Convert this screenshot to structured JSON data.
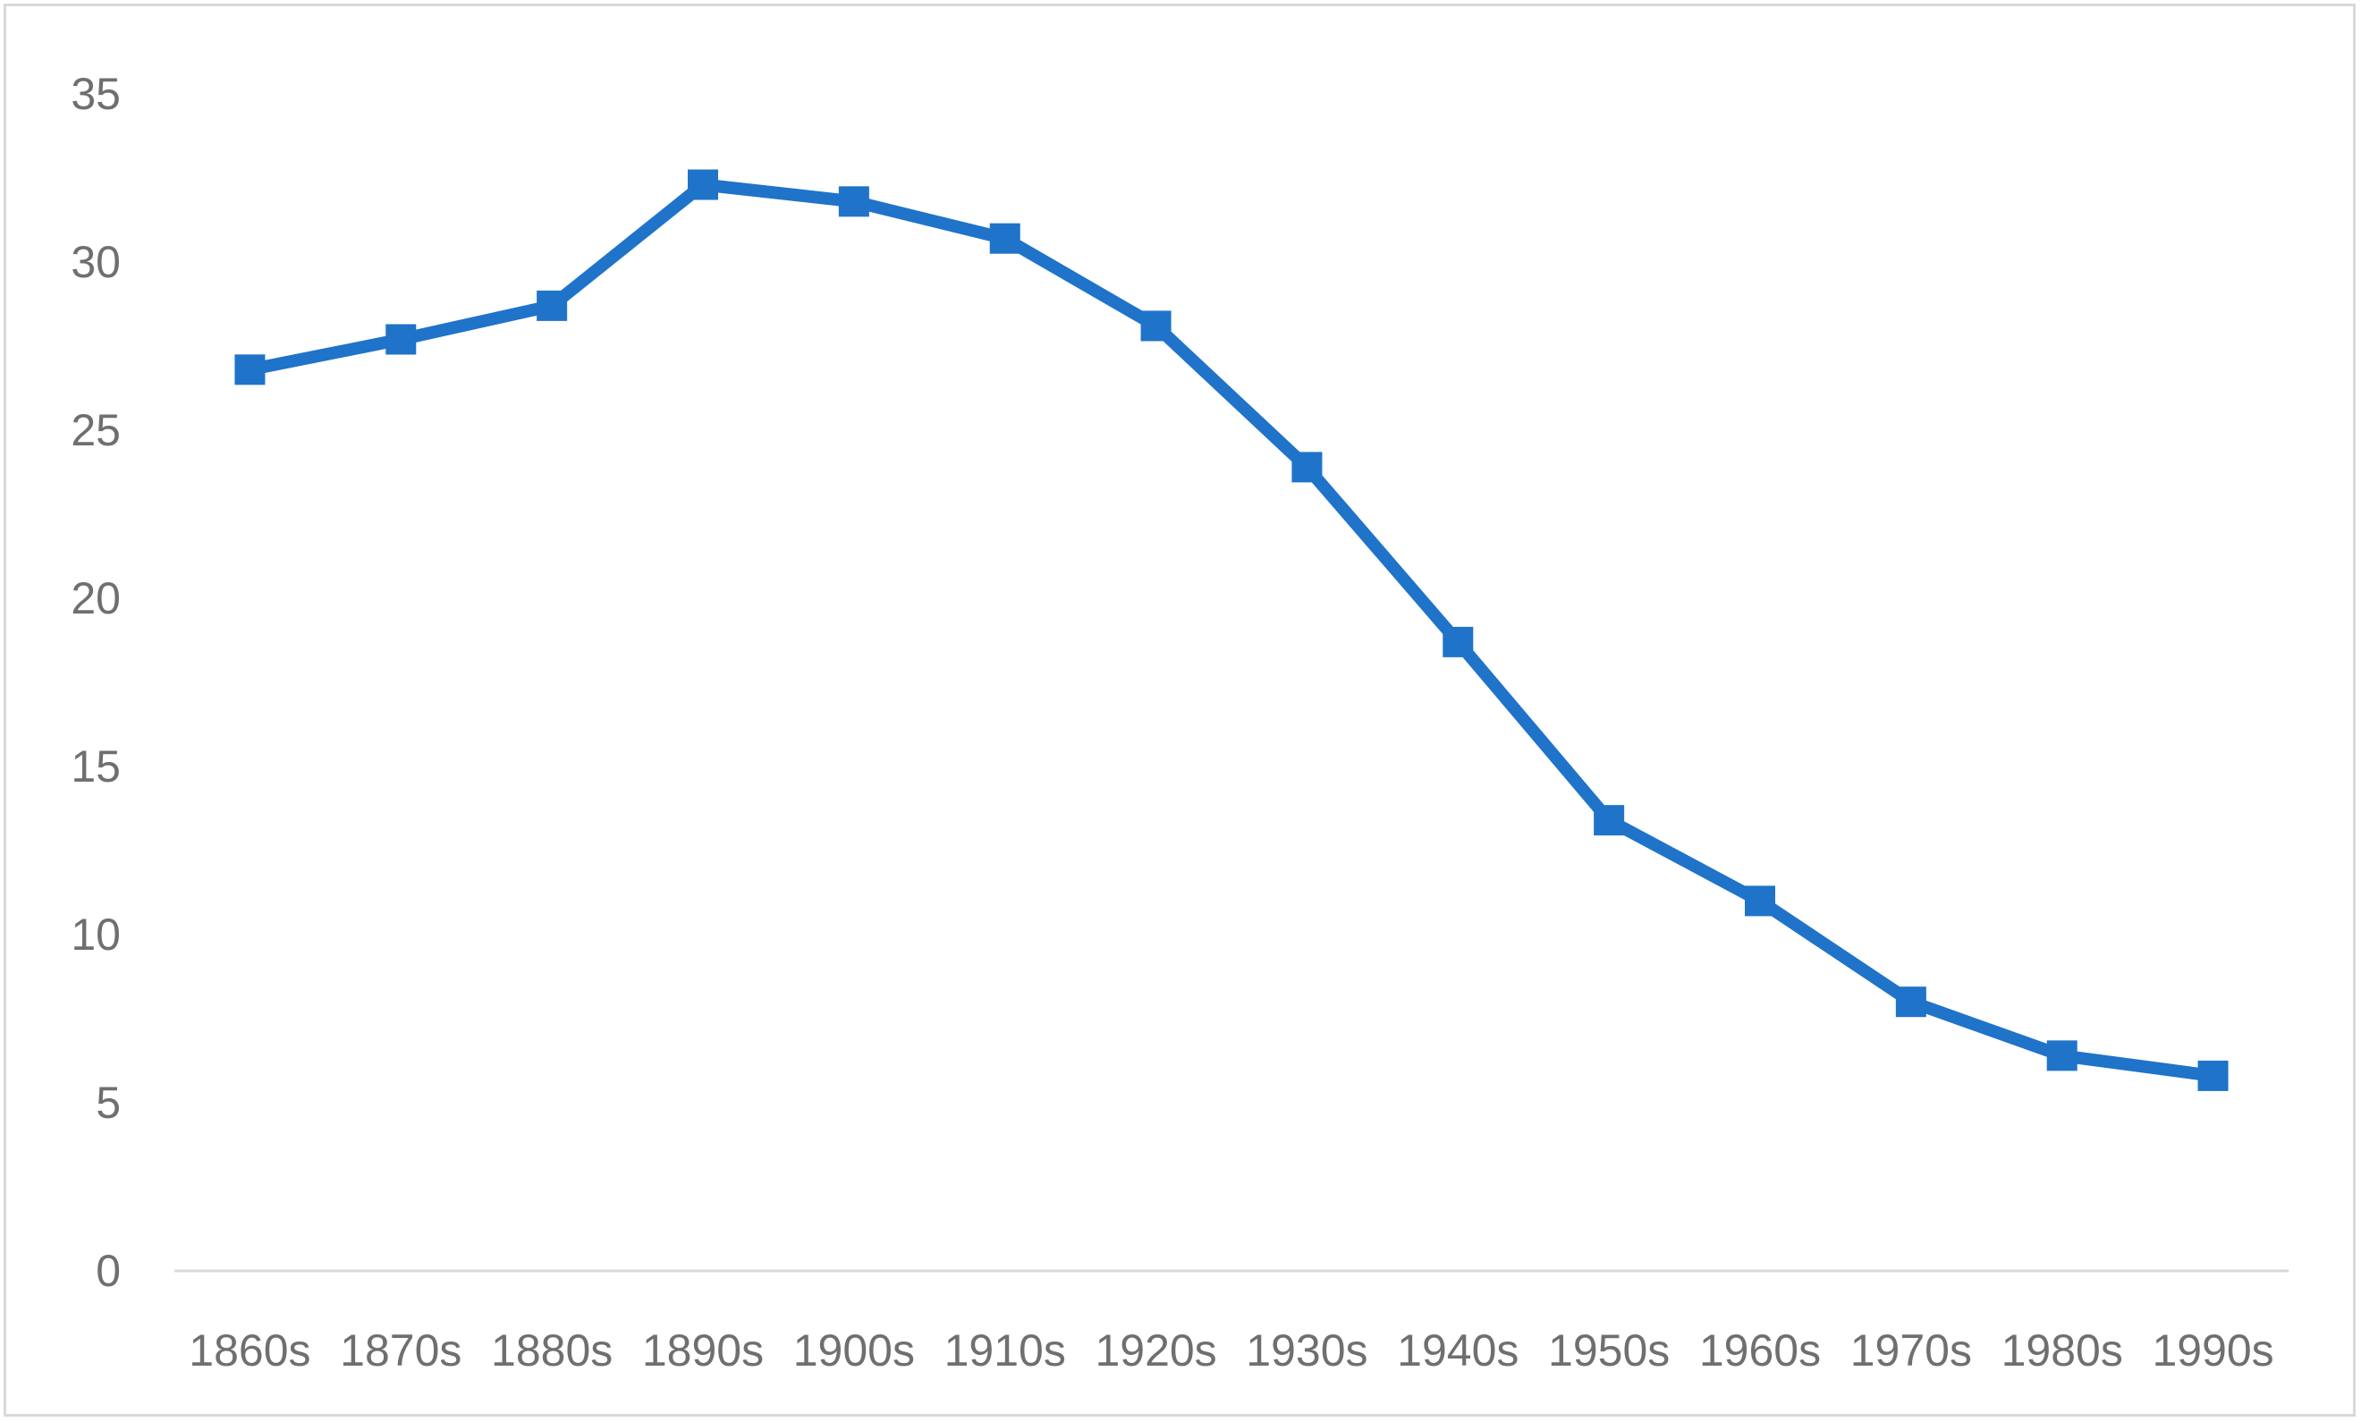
{
  "chart_data": {
    "type": "line",
    "title": "",
    "xlabel": "",
    "ylabel": "",
    "categories": [
      "1860s",
      "1870s",
      "1880s",
      "1890s",
      "1900s",
      "1910s",
      "1920s",
      "1930s",
      "1940s",
      "1950s",
      "1960s",
      "1970s",
      "1980s",
      "1990s"
    ],
    "series": [
      {
        "values": [
          26.8,
          27.7,
          28.7,
          32.3,
          31.8,
          30.7,
          28.1,
          23.9,
          18.7,
          13.4,
          11.0,
          8.0,
          6.4,
          5.8
        ],
        "color": "#1f73c9",
        "marker": "square"
      }
    ],
    "ylim": [
      0,
      35
    ],
    "yticks": [
      "0",
      "5",
      "10",
      "15",
      "20",
      "25",
      "30",
      "35"
    ],
    "grid": false,
    "legend": "none"
  }
}
